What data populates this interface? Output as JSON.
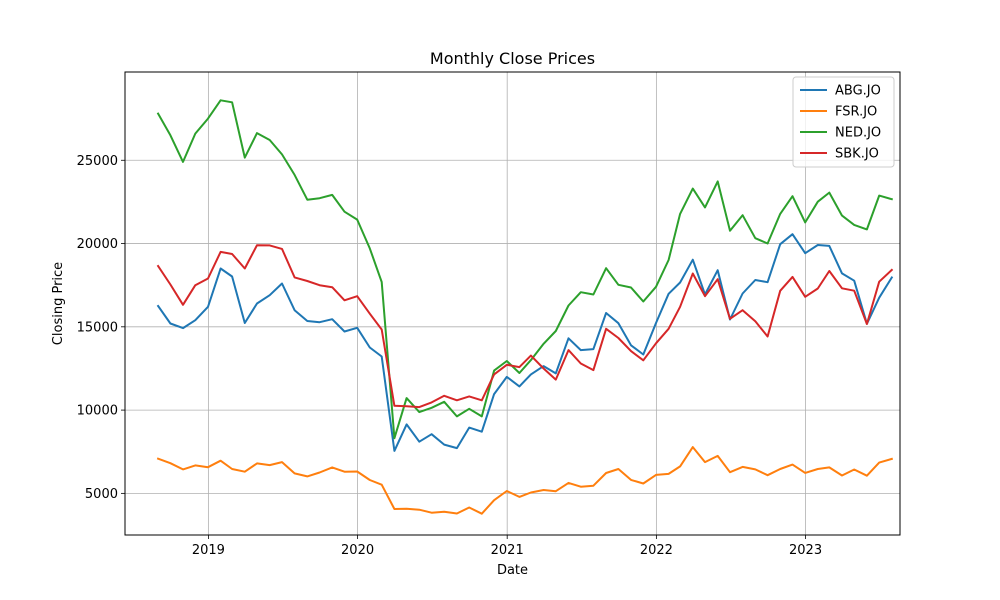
{
  "chart_data": {
    "type": "line",
    "title": "Monthly Close Prices",
    "xlabel": "Date",
    "ylabel": "Closing Price",
    "x_start": "2018-08",
    "x_range": [
      "2018-06-11",
      "2023-08-20"
    ],
    "ylim": [
      2500,
      30300
    ],
    "x_ticks": [
      {
        "label": "2019",
        "date": "2019-01-01"
      },
      {
        "label": "2020",
        "date": "2020-01-01"
      },
      {
        "label": "2021",
        "date": "2021-01-01"
      },
      {
        "label": "2022",
        "date": "2022-01-01"
      },
      {
        "label": "2023",
        "date": "2023-01-01"
      }
    ],
    "y_ticks": [
      5000,
      10000,
      15000,
      20000,
      25000
    ],
    "grid": true,
    "legend_position": "top-right",
    "series": [
      {
        "name": "ABG.JO",
        "color": "#1f77b4",
        "values": [
          16250,
          15200,
          14920,
          15400,
          16200,
          18500,
          18020,
          15230,
          16400,
          16900,
          17600,
          16000,
          15350,
          15280,
          15460,
          14720,
          14940,
          13760,
          13220,
          7550,
          9140,
          8100,
          8550,
          7930,
          7720,
          8950,
          8700,
          10960,
          11990,
          11420,
          12140,
          12640,
          12200,
          14310,
          13600,
          13660,
          15830,
          15220,
          13890,
          13340,
          15230,
          16980,
          17660,
          19030,
          16940,
          18400,
          15440,
          17000,
          17810,
          17680,
          19960,
          20560,
          19420,
          19910,
          19860,
          18210,
          17770,
          15180,
          16750,
          17960
        ]
      },
      {
        "name": "FSR.JO",
        "color": "#ff7f0e",
        "values": [
          7080,
          6810,
          6440,
          6680,
          6570,
          6960,
          6460,
          6300,
          6800,
          6700,
          6880,
          6200,
          6020,
          6250,
          6560,
          6300,
          6310,
          5800,
          5520,
          4060,
          4080,
          4020,
          3840,
          3900,
          3790,
          4150,
          3780,
          4590,
          5140,
          4790,
          5050,
          5200,
          5130,
          5630,
          5400,
          5460,
          6220,
          6460,
          5810,
          5590,
          6110,
          6170,
          6620,
          7780,
          6880,
          7250,
          6270,
          6590,
          6440,
          6090,
          6460,
          6730,
          6230,
          6460,
          6560,
          6070,
          6430,
          6060,
          6850,
          7070
        ]
      },
      {
        "name": "NED.JO",
        "color": "#2ca02c",
        "values": [
          27800,
          26500,
          24900,
          26600,
          27500,
          28600,
          28480,
          25160,
          26630,
          26220,
          25350,
          24120,
          22630,
          22720,
          22920,
          21910,
          21440,
          19710,
          17690,
          8310,
          10720,
          9880,
          10140,
          10500,
          9620,
          10080,
          9620,
          12370,
          12950,
          12230,
          13000,
          13980,
          14750,
          16280,
          17080,
          16940,
          18520,
          17520,
          17360,
          16520,
          17400,
          19010,
          21780,
          23300,
          22170,
          23730,
          20770,
          21700,
          20320,
          20000,
          21780,
          22840,
          21270,
          22510,
          23060,
          21680,
          21120,
          20850,
          22880,
          22660
        ]
      },
      {
        "name": "SBK.JO",
        "color": "#d62728",
        "values": [
          18650,
          17540,
          16320,
          17500,
          17900,
          19500,
          19370,
          18500,
          19900,
          19890,
          19680,
          17970,
          17750,
          17500,
          17380,
          16590,
          16840,
          15790,
          14840,
          10260,
          10230,
          10180,
          10460,
          10860,
          10590,
          10820,
          10590,
          12140,
          12720,
          12580,
          13270,
          12500,
          11830,
          13600,
          12800,
          12400,
          14880,
          14330,
          13540,
          12990,
          14010,
          14880,
          16200,
          18200,
          16840,
          17860,
          15480,
          16000,
          15330,
          14420,
          17160,
          18000,
          16800,
          17300,
          18350,
          17310,
          17170,
          15170,
          17710,
          18420
        ]
      }
    ]
  }
}
